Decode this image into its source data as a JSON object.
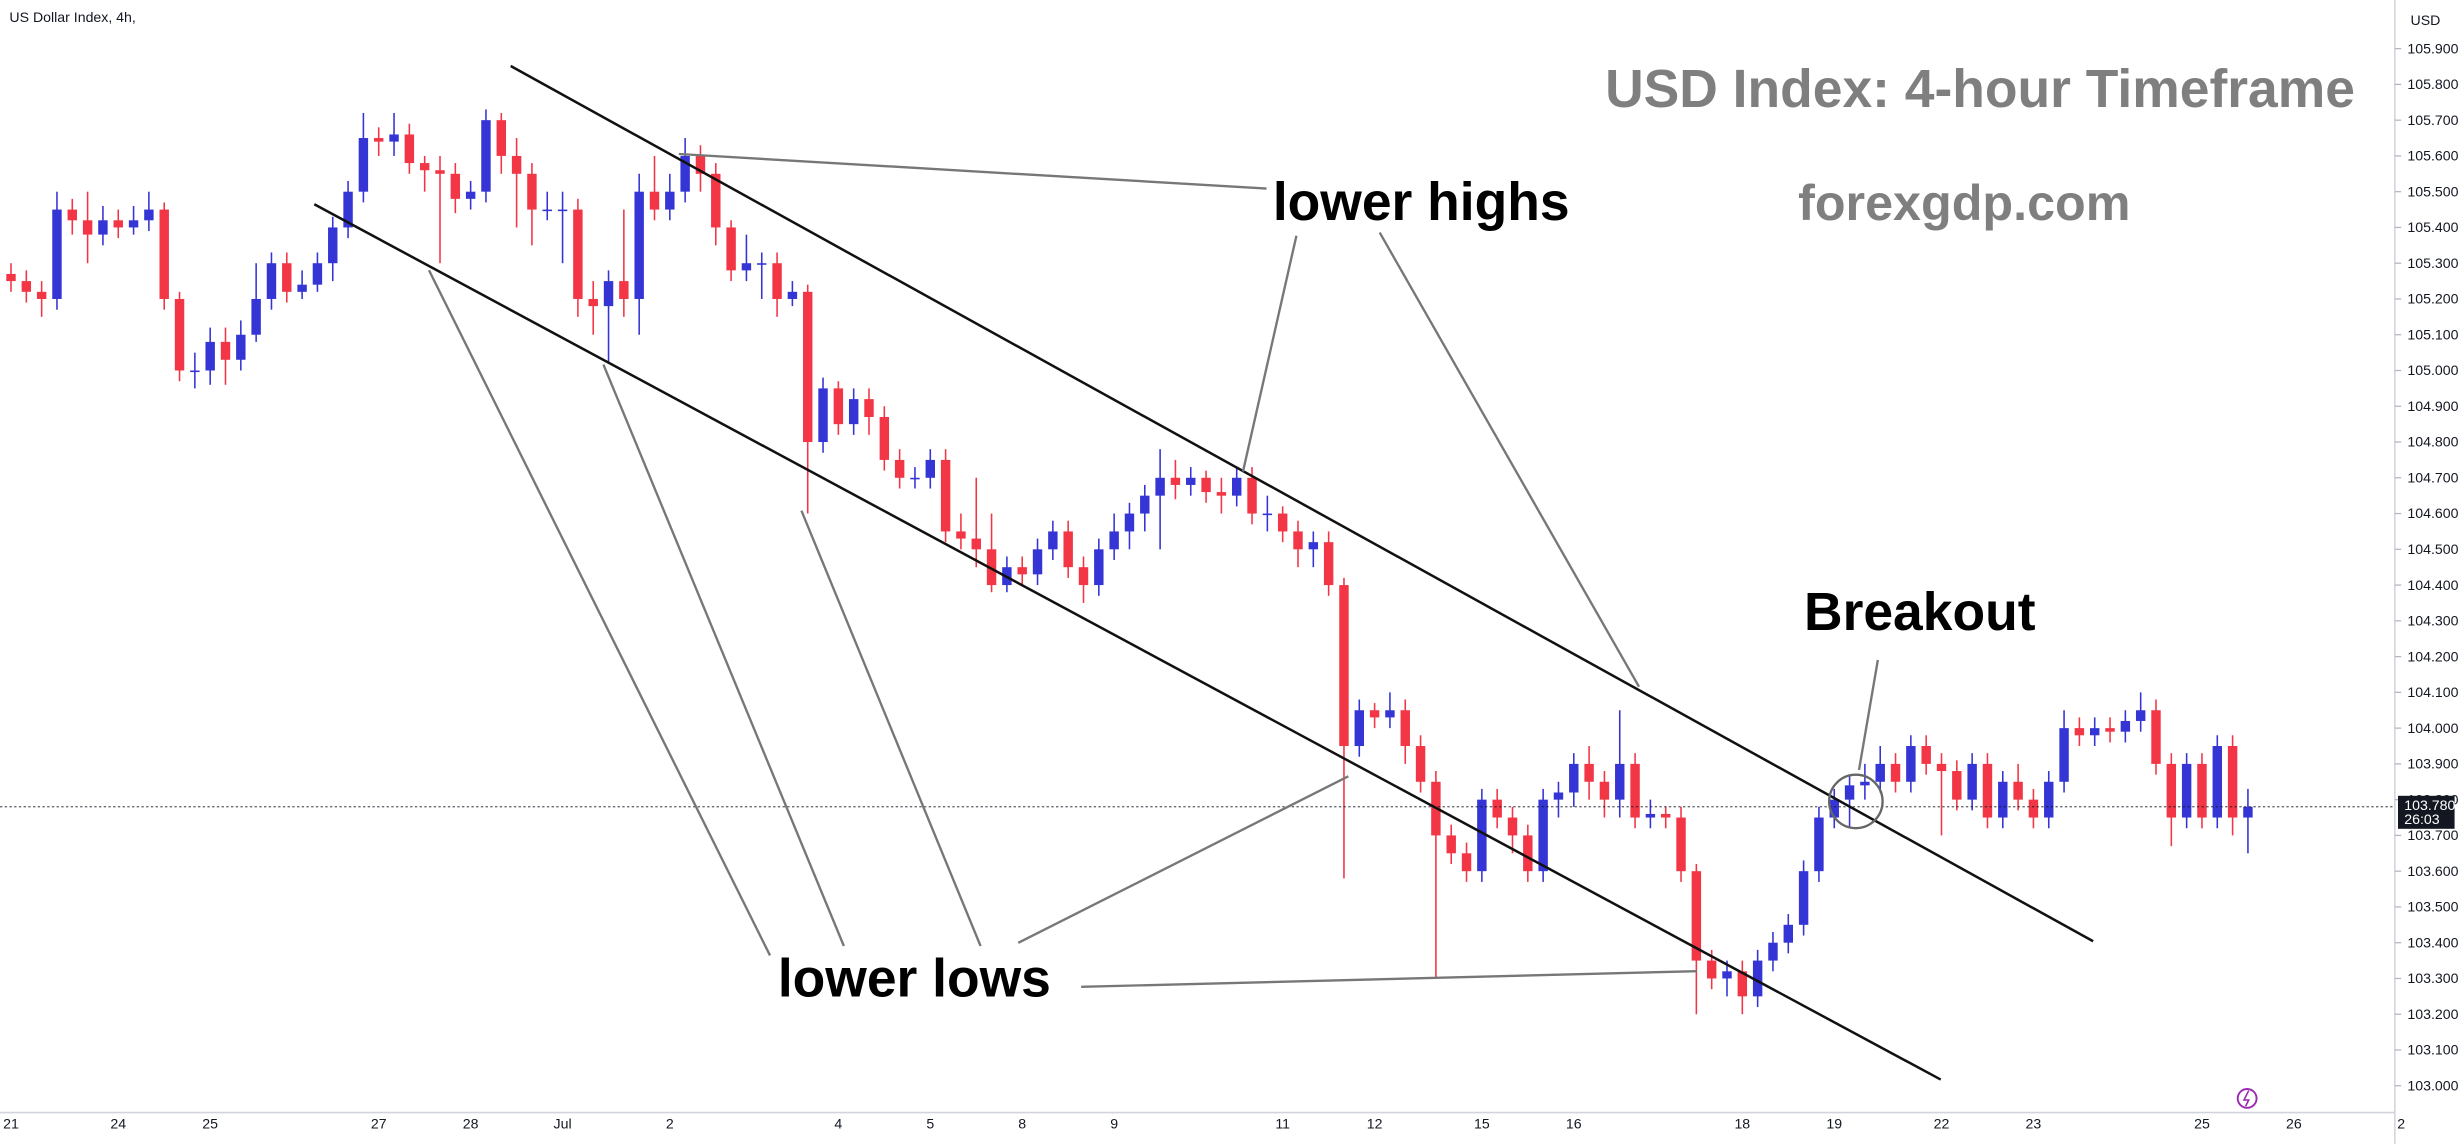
{
  "chart_data": {
    "type": "candlestick",
    "symbol_label": "US Dollar Index, 4h,",
    "currency_label": "USD",
    "title": "USD Index: 4-hour Timeframe",
    "subtitle": "forexgdp.com",
    "annotations": {
      "lower_highs": "lower highs",
      "lower_lows": "lower lows",
      "breakout": "Breakout"
    },
    "last_price": {
      "value": 103.78,
      "label": "103.780"
    },
    "countdown": "26:03",
    "up_color": "#3535d5",
    "down_color": "#f23645",
    "grid": false,
    "ylim": [
      102.925,
      106.036
    ],
    "yticks": [
      {
        "value": 103.0,
        "label": "103.000"
      },
      {
        "value": 103.1,
        "label": "103.100"
      },
      {
        "value": 103.2,
        "label": "103.200"
      },
      {
        "value": 103.3,
        "label": "103.300"
      },
      {
        "value": 103.4,
        "label": "103.400"
      },
      {
        "value": 103.5,
        "label": "103.500"
      },
      {
        "value": 103.6,
        "label": "103.600"
      },
      {
        "value": 103.7,
        "label": "103.700"
      },
      {
        "value": 103.8,
        "label": "103.800"
      },
      {
        "value": 103.9,
        "label": "103.900"
      },
      {
        "value": 104.0,
        "label": "104.000"
      },
      {
        "value": 104.1,
        "label": "104.100"
      },
      {
        "value": 104.2,
        "label": "104.200"
      },
      {
        "value": 104.3,
        "label": "104.300"
      },
      {
        "value": 104.4,
        "label": "104.400"
      },
      {
        "value": 104.5,
        "label": "104.500"
      },
      {
        "value": 104.6,
        "label": "104.600"
      },
      {
        "value": 104.7,
        "label": "104.700"
      },
      {
        "value": 104.8,
        "label": "104.800"
      },
      {
        "value": 104.9,
        "label": "104.900"
      },
      {
        "value": 105.0,
        "label": "105.000"
      },
      {
        "value": 105.1,
        "label": "105.100"
      },
      {
        "value": 105.2,
        "label": "105.200"
      },
      {
        "value": 105.3,
        "label": "105.300"
      },
      {
        "value": 105.4,
        "label": "105.400"
      },
      {
        "value": 105.5,
        "label": "105.500"
      },
      {
        "value": 105.6,
        "label": "105.600"
      },
      {
        "value": 105.7,
        "label": "105.700"
      },
      {
        "value": 105.8,
        "label": "105.800"
      },
      {
        "value": 105.9,
        "label": "105.900"
      }
    ],
    "categories": [
      "21",
      null,
      null,
      null,
      null,
      null,
      null,
      "24",
      null,
      null,
      null,
      null,
      null,
      "25",
      null,
      null,
      null,
      null,
      null,
      null,
      null,
      null,
      null,
      null,
      "27",
      null,
      null,
      null,
      null,
      null,
      "28",
      null,
      null,
      null,
      null,
      null,
      "Jul",
      null,
      null,
      null,
      null,
      null,
      null,
      "2",
      null,
      null,
      null,
      null,
      null,
      null,
      null,
      null,
      null,
      null,
      "4",
      null,
      null,
      null,
      null,
      null,
      "5",
      null,
      null,
      null,
      null,
      null,
      "8",
      null,
      null,
      null,
      null,
      null,
      "9",
      null,
      null,
      null,
      null,
      null,
      null,
      null,
      null,
      null,
      null,
      "11",
      null,
      null,
      null,
      null,
      null,
      "12",
      null,
      null,
      null,
      null,
      null,
      null,
      "15",
      null,
      null,
      null,
      null,
      null,
      "16",
      null,
      null,
      null,
      null,
      null,
      null,
      null,
      null,
      null,
      null,
      "18",
      null,
      null,
      null,
      null,
      null,
      "19",
      null,
      null,
      null,
      null,
      null,
      null,
      "22",
      null,
      null,
      null,
      null,
      null,
      "23",
      null,
      null,
      null,
      null,
      null,
      null,
      null,
      null,
      null,
      null,
      "25",
      null,
      null,
      null,
      null,
      null,
      "26",
      null,
      null,
      null,
      null,
      null,
      null,
      "2"
    ],
    "open": [
      105.27,
      105.25,
      105.22,
      105.2,
      105.45,
      105.42,
      105.38,
      105.42,
      105.4,
      105.42,
      105.45,
      105.2,
      105.0,
      105.0,
      105.08,
      105.03,
      105.1,
      105.2,
      105.3,
      105.22,
      105.24,
      105.3,
      105.4,
      105.5,
      105.65,
      105.64,
      105.66,
      105.58,
      105.56,
      105.55,
      105.48,
      105.5,
      105.7,
      105.6,
      105.55,
      105.45,
      105.45,
      105.45,
      105.2,
      105.18,
      105.25,
      105.2,
      105.5,
      105.45,
      105.5,
      105.6,
      105.55,
      105.4,
      105.28,
      105.3,
      105.3,
      105.2,
      105.22,
      104.8,
      104.95,
      104.85,
      104.92,
      104.87,
      104.75,
      104.7,
      104.7,
      104.75,
      104.55,
      104.53,
      104.5,
      104.4,
      104.45,
      104.43,
      104.5,
      104.55,
      104.45,
      104.4,
      104.5,
      104.55,
      104.6,
      104.65,
      104.7,
      104.68,
      104.7,
      104.66,
      104.65,
      104.7,
      104.6,
      104.6,
      104.55,
      104.5,
      104.52,
      104.4,
      103.95,
      104.05,
      104.03,
      104.05,
      103.95,
      103.85,
      103.7,
      103.65,
      103.6,
      103.8,
      103.75,
      103.7,
      103.6,
      103.8,
      103.82,
      103.9,
      103.85,
      103.8,
      103.9,
      103.75,
      103.76,
      103.75,
      103.6,
      103.35,
      103.3,
      103.32,
      103.25,
      103.35,
      103.4,
      103.45,
      103.6,
      103.75,
      103.8,
      103.84,
      103.85,
      103.9,
      103.85,
      103.95,
      103.9,
      103.88,
      103.8,
      103.9,
      103.75,
      103.85,
      103.8,
      103.75,
      103.85,
      104.0,
      103.98,
      104.0,
      103.99,
      104.02,
      104.05,
      103.9,
      103.75,
      103.9,
      103.75,
      103.95,
      103.75,
      null,
      null,
      null,
      null,
      null,
      null,
      null,
      null,
      null,
      null
    ],
    "high": [
      105.3,
      105.28,
      105.25,
      105.5,
      105.48,
      105.5,
      105.46,
      105.45,
      105.46,
      105.5,
      105.47,
      105.22,
      105.05,
      105.12,
      105.12,
      105.14,
      105.3,
      105.33,
      105.33,
      105.28,
      105.33,
      105.43,
      105.53,
      105.72,
      105.68,
      105.72,
      105.69,
      105.6,
      105.6,
      105.58,
      105.53,
      105.73,
      105.72,
      105.65,
      105.58,
      105.5,
      105.5,
      105.48,
      105.25,
      105.28,
      105.45,
      105.55,
      105.6,
      105.55,
      105.65,
      105.63,
      105.58,
      105.42,
      105.38,
      105.33,
      105.33,
      105.25,
      105.24,
      104.98,
      104.97,
      104.95,
      104.95,
      104.9,
      104.78,
      104.73,
      104.78,
      104.78,
      104.6,
      104.7,
      104.6,
      104.48,
      104.48,
      104.53,
      104.58,
      104.58,
      104.48,
      104.53,
      104.6,
      104.63,
      104.68,
      104.78,
      104.75,
      104.73,
      104.72,
      104.7,
      104.73,
      104.73,
      104.65,
      104.62,
      104.58,
      104.55,
      104.55,
      104.42,
      104.08,
      104.07,
      104.1,
      104.08,
      103.98,
      103.88,
      103.73,
      103.68,
      103.83,
      103.83,
      103.78,
      103.73,
      103.83,
      103.85,
      103.93,
      103.95,
      103.88,
      104.05,
      103.93,
      103.8,
      103.78,
      103.78,
      103.62,
      103.38,
      103.35,
      103.35,
      103.38,
      103.43,
      103.48,
      103.63,
      103.78,
      103.83,
      103.87,
      103.9,
      103.95,
      103.93,
      103.98,
      103.98,
      103.93,
      103.91,
      103.93,
      103.93,
      103.88,
      103.9,
      103.83,
      103.88,
      104.05,
      104.03,
      104.03,
      104.03,
      104.05,
      104.1,
      104.08,
      103.93,
      103.93,
      103.93,
      103.98,
      103.98,
      103.83,
      null,
      null,
      null,
      null,
      null,
      null,
      null,
      null,
      null,
      null
    ],
    "low": [
      105.22,
      105.19,
      105.15,
      105.17,
      105.38,
      105.3,
      105.35,
      105.37,
      105.38,
      105.39,
      105.17,
      104.97,
      104.95,
      104.96,
      104.96,
      105.0,
      105.08,
      105.17,
      105.19,
      105.2,
      105.22,
      105.25,
      105.37,
      105.47,
      105.6,
      105.6,
      105.55,
      105.5,
      105.3,
      105.44,
      105.45,
      105.47,
      105.55,
      105.4,
      105.35,
      105.42,
      105.3,
      105.15,
      105.1,
      105.02,
      105.15,
      105.1,
      105.42,
      105.42,
      105.47,
      105.5,
      105.35,
      105.25,
      105.25,
      105.2,
      105.15,
      105.18,
      104.6,
      104.77,
      104.82,
      104.82,
      104.82,
      104.72,
      104.67,
      104.67,
      104.67,
      104.52,
      104.5,
      104.45,
      104.38,
      104.38,
      104.4,
      104.4,
      104.47,
      104.42,
      104.35,
      104.37,
      104.47,
      104.5,
      104.55,
      104.5,
      104.64,
      104.65,
      104.63,
      104.6,
      104.62,
      104.57,
      104.55,
      104.52,
      104.45,
      104.45,
      104.37,
      103.58,
      103.92,
      104.0,
      104.0,
      103.9,
      103.82,
      103.3,
      103.62,
      103.57,
      103.57,
      103.72,
      103.65,
      103.57,
      103.57,
      103.75,
      103.78,
      103.8,
      103.75,
      103.75,
      103.72,
      103.72,
      103.72,
      103.57,
      103.2,
      103.27,
      103.25,
      103.2,
      103.22,
      103.32,
      103.37,
      103.42,
      103.57,
      103.72,
      103.72,
      103.8,
      103.82,
      103.82,
      103.82,
      103.87,
      103.7,
      103.77,
      103.77,
      103.72,
      103.72,
      103.77,
      103.72,
      103.72,
      103.82,
      103.95,
      103.95,
      103.96,
      103.96,
      103.99,
      103.87,
      103.67,
      103.72,
      103.72,
      103.72,
      103.7,
      103.65,
      null,
      null,
      null,
      null,
      null,
      null,
      null,
      null,
      null,
      null
    ],
    "close": [
      105.25,
      105.22,
      105.2,
      105.45,
      105.42,
      105.38,
      105.42,
      105.4,
      105.42,
      105.45,
      105.2,
      105.0,
      105.0,
      105.08,
      105.03,
      105.1,
      105.2,
      105.3,
      105.22,
      105.24,
      105.3,
      105.4,
      105.5,
      105.65,
      105.64,
      105.66,
      105.58,
      105.56,
      105.55,
      105.48,
      105.5,
      105.7,
      105.6,
      105.55,
      105.45,
      105.45,
      105.45,
      105.2,
      105.18,
      105.25,
      105.2,
      105.5,
      105.45,
      105.5,
      105.6,
      105.55,
      105.4,
      105.28,
      105.3,
      105.3,
      105.2,
      105.22,
      104.8,
      104.95,
      104.85,
      104.92,
      104.87,
      104.75,
      104.7,
      104.7,
      104.75,
      104.55,
      104.53,
      104.5,
      104.4,
      104.45,
      104.43,
      104.5,
      104.55,
      104.45,
      104.4,
      104.5,
      104.55,
      104.6,
      104.65,
      104.7,
      104.68,
      104.7,
      104.66,
      104.65,
      104.7,
      104.6,
      104.6,
      104.55,
      104.5,
      104.52,
      104.4,
      103.95,
      104.05,
      104.03,
      104.05,
      103.95,
      103.85,
      103.7,
      103.65,
      103.6,
      103.8,
      103.75,
      103.7,
      103.6,
      103.8,
      103.82,
      103.9,
      103.85,
      103.8,
      103.9,
      103.75,
      103.76,
      103.75,
      103.6,
      103.35,
      103.3,
      103.32,
      103.25,
      103.35,
      103.4,
      103.45,
      103.6,
      103.75,
      103.8,
      103.84,
      103.85,
      103.9,
      103.85,
      103.95,
      103.9,
      103.88,
      103.8,
      103.9,
      103.75,
      103.85,
      103.8,
      103.75,
      103.85,
      104.0,
      103.98,
      104.0,
      103.99,
      104.02,
      104.05,
      103.9,
      103.75,
      103.9,
      103.75,
      103.95,
      103.75,
      103.78,
      null,
      null,
      null,
      null,
      null,
      null,
      null,
      null,
      null,
      null
    ]
  }
}
